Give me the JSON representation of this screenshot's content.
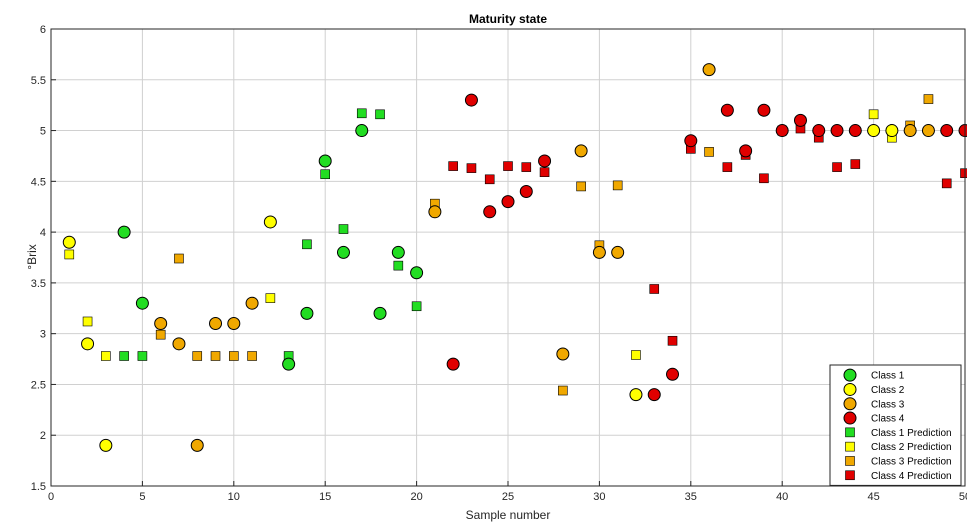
{
  "chart_data": {
    "type": "scatter",
    "title": "Maturity state",
    "xlabel": "Sample number",
    "ylabel": "°Brix",
    "xlim": [
      0,
      50
    ],
    "ylim": [
      1.5,
      6
    ],
    "xticks": [
      0,
      5,
      10,
      15,
      20,
      25,
      30,
      35,
      40,
      45,
      50
    ],
    "yticks": [
      1.5,
      2,
      2.5,
      3,
      3.5,
      4,
      4.5,
      5,
      5.5,
      6
    ],
    "grid": true,
    "legend_position": "bottom-right",
    "colors": {
      "class1": "#22dd22",
      "class2": "#ffff00",
      "class3": "#f0a800",
      "class4": "#e00000"
    },
    "series": [
      {
        "name": "Class 1",
        "marker": "circle",
        "color": "#22dd22",
        "points": [
          [
            4,
            4.0
          ],
          [
            5,
            3.3
          ],
          [
            13,
            2.7
          ],
          [
            14,
            3.2
          ],
          [
            15,
            4.7
          ],
          [
            16,
            3.8
          ],
          [
            17,
            5.0
          ],
          [
            18,
            3.2
          ],
          [
            19,
            3.8
          ],
          [
            20,
            3.6
          ]
        ]
      },
      {
        "name": "Class 2",
        "marker": "circle",
        "color": "#ffff00",
        "points": [
          [
            1,
            3.9
          ],
          [
            2,
            2.9
          ],
          [
            3,
            1.9
          ],
          [
            12,
            4.1
          ],
          [
            32,
            2.4
          ],
          [
            45,
            5.0
          ],
          [
            46,
            5.0
          ]
        ]
      },
      {
        "name": "Class 3",
        "marker": "circle",
        "color": "#f0a800",
        "points": [
          [
            6,
            3.1
          ],
          [
            7,
            2.9
          ],
          [
            8,
            1.9
          ],
          [
            9,
            3.1
          ],
          [
            10,
            3.1
          ],
          [
            11,
            3.3
          ],
          [
            21,
            4.2
          ],
          [
            28,
            2.8
          ],
          [
            29,
            4.8
          ],
          [
            30,
            3.8
          ],
          [
            31,
            3.8
          ],
          [
            36,
            5.6
          ],
          [
            47,
            5.0
          ],
          [
            48,
            5.0
          ]
        ]
      },
      {
        "name": "Class 4",
        "marker": "circle",
        "color": "#e00000",
        "points": [
          [
            22,
            2.7
          ],
          [
            23,
            5.3
          ],
          [
            24,
            4.2
          ],
          [
            25,
            4.3
          ],
          [
            26,
            4.4
          ],
          [
            27,
            4.7
          ],
          [
            33,
            2.4
          ],
          [
            34,
            2.6
          ],
          [
            35,
            4.9
          ],
          [
            37,
            5.2
          ],
          [
            38,
            4.8
          ],
          [
            39,
            5.2
          ],
          [
            40,
            5.0
          ],
          [
            41,
            5.1
          ],
          [
            42,
            5.0
          ],
          [
            43,
            5.0
          ],
          [
            44,
            5.0
          ],
          [
            49,
            5.0
          ],
          [
            50,
            5.0
          ]
        ]
      },
      {
        "name": "Class 1 Prediction",
        "marker": "square",
        "color": "#22dd22",
        "points": [
          [
            4,
            2.78
          ],
          [
            5,
            2.78
          ],
          [
            13,
            2.78
          ],
          [
            14,
            3.88
          ],
          [
            15,
            4.57
          ],
          [
            16,
            4.03
          ],
          [
            17,
            5.17
          ],
          [
            18,
            5.16
          ],
          [
            19,
            3.67
          ],
          [
            20,
            3.27
          ]
        ]
      },
      {
        "name": "Class 2 Prediction",
        "marker": "square",
        "color": "#ffff00",
        "points": [
          [
            1,
            3.78
          ],
          [
            2,
            3.12
          ],
          [
            3,
            2.78
          ],
          [
            12,
            3.35
          ],
          [
            32,
            2.79
          ],
          [
            45,
            5.16
          ],
          [
            46,
            4.93
          ]
        ]
      },
      {
        "name": "Class 3 Prediction",
        "marker": "square",
        "color": "#f0a800",
        "points": [
          [
            6,
            2.99
          ],
          [
            7,
            3.74
          ],
          [
            8,
            2.78
          ],
          [
            9,
            2.78
          ],
          [
            10,
            2.78
          ],
          [
            11,
            2.78
          ],
          [
            21,
            4.28
          ],
          [
            28,
            2.44
          ],
          [
            29,
            4.45
          ],
          [
            30,
            3.87
          ],
          [
            31,
            4.46
          ],
          [
            36,
            4.79
          ],
          [
            47,
            5.05
          ],
          [
            48,
            5.31
          ]
        ]
      },
      {
        "name": "Class 4 Prediction",
        "marker": "square",
        "color": "#e00000",
        "points": [
          [
            22,
            4.65
          ],
          [
            23,
            4.63
          ],
          [
            24,
            4.52
          ],
          [
            25,
            4.65
          ],
          [
            26,
            4.64
          ],
          [
            27,
            4.59
          ],
          [
            33,
            3.44
          ],
          [
            34,
            2.93
          ],
          [
            35,
            4.82
          ],
          [
            37,
            4.64
          ],
          [
            38,
            4.76
          ],
          [
            39,
            4.53
          ],
          [
            40,
            5.0
          ],
          [
            41,
            5.02
          ],
          [
            42,
            4.93
          ],
          [
            43,
            4.64
          ],
          [
            44,
            4.67
          ],
          [
            49,
            4.48
          ],
          [
            50,
            4.58
          ]
        ]
      }
    ]
  }
}
